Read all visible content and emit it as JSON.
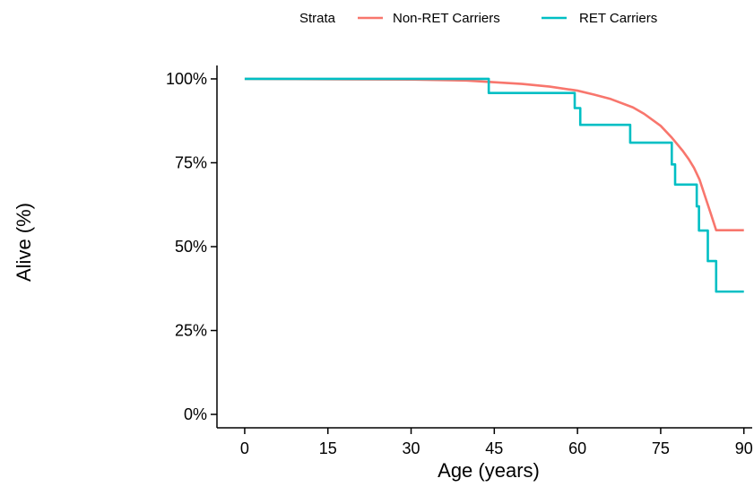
{
  "chart_data": {
    "type": "line",
    "title": "",
    "xlabel": "Age (years)",
    "ylabel": "Alive (%)",
    "xlim": [
      -5,
      91.5
    ],
    "ylim": [
      -0.04,
      1.04
    ],
    "x_ticks": [
      0,
      15,
      30,
      45,
      60,
      75,
      90
    ],
    "x_tick_labels": [
      "0",
      "15",
      "30",
      "45",
      "60",
      "75",
      "90"
    ],
    "y_ticks": [
      0,
      0.25,
      0.5,
      0.75,
      1.0
    ],
    "y_tick_labels": [
      "0%",
      "25%",
      "50%",
      "75%",
      "100%"
    ],
    "grid": false,
    "legend": {
      "title": "Strata",
      "position": "top",
      "entries": [
        "Non-RET Carriers",
        "RET Carriers"
      ]
    },
    "series": [
      {
        "name": "Non-RET Carriers",
        "color": "#F8766D",
        "step": false,
        "x": [
          0,
          30,
          40,
          45,
          50,
          55,
          60,
          63,
          66,
          70,
          72,
          75,
          77,
          79,
          80,
          81,
          82,
          83,
          84,
          85,
          90
        ],
        "y": [
          1.0,
          0.998,
          0.995,
          0.99,
          0.985,
          0.977,
          0.965,
          0.953,
          0.94,
          0.915,
          0.896,
          0.86,
          0.825,
          0.785,
          0.762,
          0.735,
          0.7,
          0.65,
          0.6,
          0.549,
          0.549
        ]
      },
      {
        "name": "RET Carriers",
        "color": "#00BFC4",
        "step": true,
        "x": [
          0,
          44,
          59.5,
          60.5,
          69.5,
          77,
          77.6,
          81.5,
          81.9,
          83.5,
          85,
          90
        ],
        "y": [
          1.0,
          0.958,
          0.913,
          0.863,
          0.81,
          0.745,
          0.685,
          0.62,
          0.548,
          0.457,
          0.366,
          0.366
        ]
      }
    ]
  }
}
